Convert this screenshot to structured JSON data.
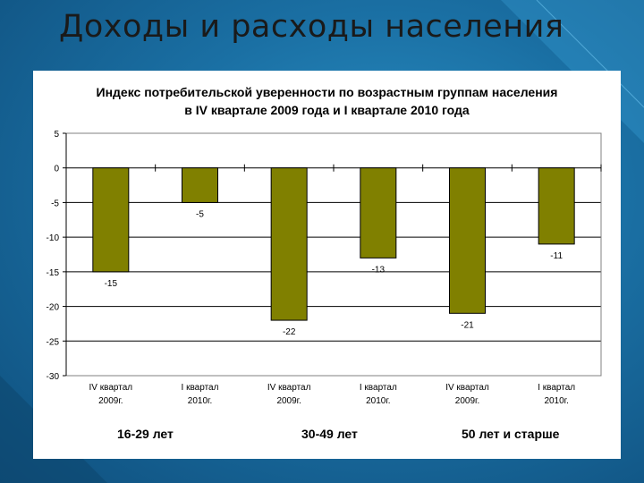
{
  "slide": {
    "title": "Доходы и расходы населения"
  },
  "chart_data": {
    "type": "bar",
    "title_lines": [
      "Индекс потребительской уверенности по возрастным группам населения",
      "в IV квартале 2009 года и  I квартале 2010 года"
    ],
    "categories": [
      [
        "IV квартал",
        "2009г."
      ],
      [
        "I квартал",
        "2010г."
      ],
      [
        "IV квартал",
        "2009г."
      ],
      [
        "I квартал",
        "2010г."
      ],
      [
        "IV квартал",
        "2009г."
      ],
      [
        "I квартал",
        "2010г."
      ]
    ],
    "values": [
      -15,
      -5,
      -22,
      -13,
      -21,
      -11
    ],
    "data_labels": [
      "-15",
      "-5",
      "-22",
      "-13",
      "-21",
      "-11"
    ],
    "groups": [
      "16-29 лет",
      "30-49 лет",
      "50 лет и старше"
    ],
    "ylim": [
      -30,
      5
    ],
    "yticks": [
      "5",
      "0",
      "-5",
      "-10",
      "-15",
      "-20",
      "-25",
      "-30"
    ],
    "gridlines": true,
    "bar_color": "#808000",
    "legend": "none"
  }
}
